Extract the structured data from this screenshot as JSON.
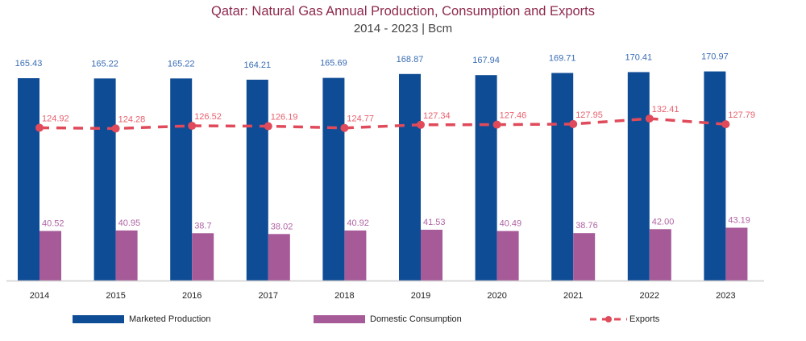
{
  "chart_data": {
    "type": "bar",
    "title": "Qatar: Natural Gas Annual Production, Consumption and Exports",
    "subtitle": "2014 - 2023 | Bcm",
    "xlabel": "",
    "ylabel": "",
    "ylim": [
      0,
      229
    ],
    "grid": false,
    "legend_position": "bottom",
    "categories": [
      "2014",
      "2015",
      "2016",
      "2017",
      "2018",
      "2019",
      "2020",
      "2021",
      "2022",
      "2023"
    ],
    "series": [
      {
        "name": "Marketed Production",
        "kind": "bar",
        "color": "#0f4c96",
        "label_color": "#3a6db5",
        "values": [
          165.43,
          165.22,
          165.22,
          164.21,
          165.69,
          168.87,
          167.94,
          169.71,
          170.41,
          170.97
        ],
        "labels": [
          "165.43",
          "165.22",
          "165.22",
          "164.21",
          "165.69",
          "168.87",
          "167.94",
          "169.71",
          "170.41",
          "170.97"
        ]
      },
      {
        "name": "Domestic Consumption",
        "kind": "bar",
        "color": "#a65a98",
        "label_color": "#b064a4",
        "values": [
          40.52,
          40.95,
          38.7,
          38.02,
          40.92,
          41.53,
          40.49,
          38.76,
          42.0,
          43.19
        ],
        "labels": [
          "40.52",
          "40.95",
          "38.7",
          "38.02",
          "40.92",
          "41.53",
          "40.49",
          "38.76",
          "42.00",
          "43.19"
        ]
      },
      {
        "name": "Exports",
        "kind": "line",
        "style": "dashed-with-markers",
        "color": "#e04a5a",
        "label_color": "#e8606e",
        "values": [
          124.92,
          124.28,
          126.52,
          126.19,
          124.77,
          127.34,
          127.46,
          127.95,
          132.41,
          127.79
        ],
        "labels": [
          "124.92",
          "124.28",
          "126.52",
          "126.19",
          "124.77",
          "127.34",
          "127.46",
          "127.95",
          "132.41",
          "127.79"
        ]
      }
    ]
  }
}
